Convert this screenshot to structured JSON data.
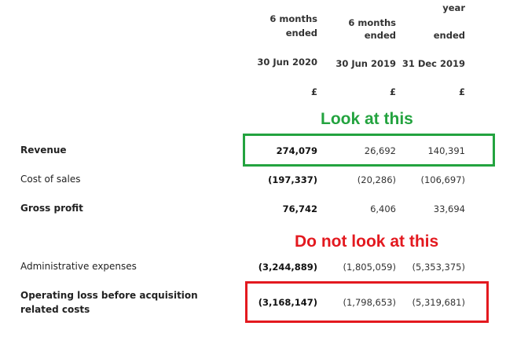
{
  "colors": {
    "green_box": "#23a33f",
    "red_box": "#e3191f"
  },
  "columns": [
    {
      "line1": "6 months",
      "line2": "ended",
      "date": "30 Jun 2020",
      "currency": "£"
    },
    {
      "line1": "6 months",
      "line2": "ended",
      "date": "30 Jun 2019",
      "currency": "£"
    },
    {
      "line1": "year",
      "line2": "ended",
      "date": "31 Dec 2019",
      "currency": "£"
    }
  ],
  "annotations": {
    "look": "Look at this",
    "dont_look": "Do not look at this"
  },
  "rows": {
    "revenue": {
      "label": "Revenue",
      "values": [
        "274,079",
        "26,692",
        "140,391"
      ]
    },
    "cost_of_sales": {
      "label": "Cost of sales",
      "values": [
        "(197,337)",
        "(20,286)",
        "(106,697)"
      ]
    },
    "gross_profit": {
      "label": "Gross profit",
      "values": [
        "76,742",
        "6,406",
        "33,694"
      ]
    },
    "admin_expenses": {
      "label": "Administrative expenses",
      "values": [
        "(3,244,889)",
        "(1,805,059)",
        "(5,353,375)"
      ]
    },
    "operating_loss": {
      "label_line1": "Operating loss before acquisition",
      "label_line2": "related costs",
      "values": [
        "(3,168,147)",
        "(1,798,653)",
        "(5,319,681)"
      ]
    }
  }
}
